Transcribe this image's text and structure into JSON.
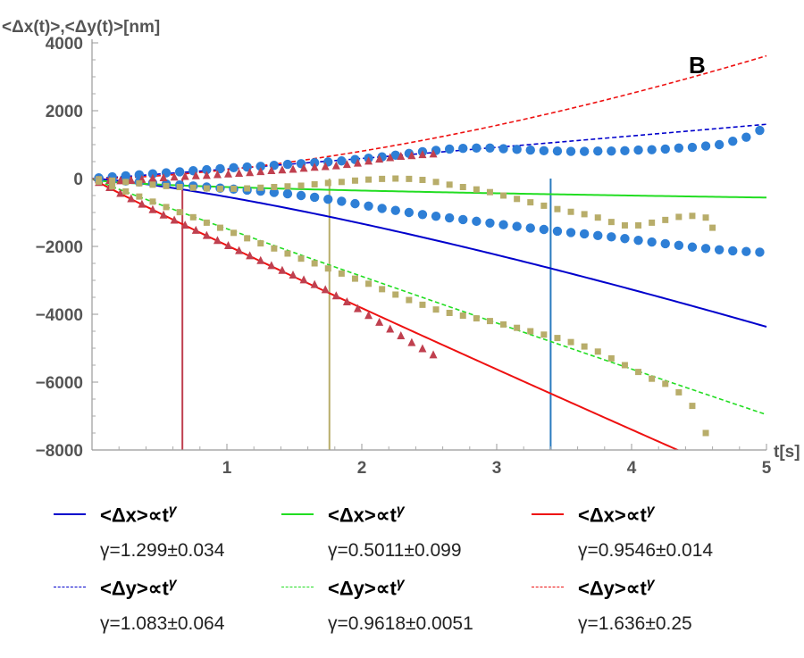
{
  "chart_data": {
    "type": "scatter",
    "panel_label": "B",
    "ylabel": "<Δx(t)>,<Δy(t)>[nm]",
    "xlabel": "t[s]",
    "xlim": [
      0,
      5
    ],
    "ylim": [
      -8000,
      4000
    ],
    "x_ticks": [
      "1",
      "2",
      "3",
      "4",
      "5"
    ],
    "y_ticks": [
      "4000",
      "2000",
      "0",
      "−2000",
      "−4000",
      "−6000",
      "−8000"
    ],
    "y_tick_values": [
      4000,
      2000,
      0,
      -2000,
      -4000,
      -6000,
      -8000
    ],
    "x_tick_values": [
      1,
      2,
      3,
      4,
      5
    ],
    "vertical_lines": [
      {
        "x": 0.67,
        "color": "#c0404f"
      },
      {
        "x": 1.76,
        "color": "#b8ad6a"
      },
      {
        "x": 3.4,
        "color": "#2a7bbf"
      }
    ],
    "fits": [
      {
        "name": "<Δx>∝t^γ blue",
        "color": "#0000cc",
        "dash": false,
        "coef": -540,
        "gamma": 1.299
      },
      {
        "name": "<Δx>∝t^γ green",
        "color": "#22dd22",
        "dash": false,
        "coef": -250,
        "gamma": 0.5011
      },
      {
        "name": "<Δx>∝t^γ red",
        "color": "#ee1111",
        "dash": false,
        "coef": -1970,
        "gamma": 0.9546
      },
      {
        "name": "<Δy>∝t^γ blue",
        "color": "#0000cc",
        "dash": true,
        "coef": 280,
        "gamma": 1.083
      },
      {
        "name": "<Δy>∝t^γ green",
        "color": "#22dd22",
        "dash": true,
        "coef": -1480,
        "gamma": 0.9618
      },
      {
        "name": "<Δy>∝t^γ red",
        "color": "#ee1111",
        "dash": true,
        "coef": 260,
        "gamma": 1.636
      }
    ],
    "series": [
      {
        "marker": "circle",
        "color": "#2e7fd6",
        "x": [
          0.05,
          0.15,
          0.25,
          0.35,
          0.45,
          0.55,
          0.65,
          0.75,
          0.85,
          0.95,
          1.05,
          1.15,
          1.25,
          1.35,
          1.45,
          1.55,
          1.65,
          1.75,
          1.85,
          1.95,
          2.05,
          2.15,
          2.25,
          2.35,
          2.45,
          2.55,
          2.65,
          2.75,
          2.85,
          2.95,
          3.05,
          3.15,
          3.25,
          3.35,
          3.45,
          3.55,
          3.65,
          3.75,
          3.85,
          3.95,
          4.05,
          4.15,
          4.25,
          4.35,
          4.45,
          4.55,
          4.65,
          4.75,
          4.85,
          4.95
        ],
        "y": [
          20,
          50,
          80,
          110,
          140,
          170,
          200,
          230,
          260,
          290,
          320,
          340,
          360,
          390,
          420,
          440,
          470,
          490,
          520,
          560,
          600,
          640,
          690,
          740,
          790,
          830,
          870,
          890,
          900,
          900,
          880,
          860,
          840,
          820,
          810,
          800,
          800,
          810,
          810,
          820,
          840,
          850,
          870,
          900,
          920,
          960,
          1000,
          1100,
          1220,
          1420
        ]
      },
      {
        "marker": "circle",
        "color": "#2e7fd6",
        "x": [
          0.05,
          0.15,
          0.25,
          0.35,
          0.45,
          0.55,
          0.65,
          0.75,
          0.85,
          0.95,
          1.05,
          1.15,
          1.25,
          1.35,
          1.45,
          1.55,
          1.65,
          1.75,
          1.85,
          1.95,
          2.05,
          2.15,
          2.25,
          2.35,
          2.45,
          2.55,
          2.65,
          2.75,
          2.85,
          2.95,
          3.05,
          3.15,
          3.25,
          3.35,
          3.45,
          3.55,
          3.65,
          3.75,
          3.85,
          3.95,
          4.05,
          4.15,
          4.25,
          4.35,
          4.45,
          4.55,
          4.65,
          4.75,
          4.85,
          4.95
        ],
        "y": [
          -20,
          -40,
          -70,
          -100,
          -130,
          -160,
          -190,
          -220,
          -250,
          -280,
          -310,
          -340,
          -370,
          -410,
          -450,
          -500,
          -550,
          -610,
          -670,
          -740,
          -810,
          -880,
          -940,
          -1000,
          -1060,
          -1110,
          -1160,
          -1210,
          -1260,
          -1310,
          -1360,
          -1410,
          -1460,
          -1500,
          -1550,
          -1590,
          -1630,
          -1680,
          -1720,
          -1770,
          -1820,
          -1870,
          -1920,
          -1970,
          -2020,
          -2060,
          -2100,
          -2130,
          -2150,
          -2170
        ]
      },
      {
        "marker": "triangle",
        "color": "#c0404f",
        "x": [
          0.05,
          0.13,
          0.21,
          0.29,
          0.37,
          0.45,
          0.53,
          0.61,
          0.69,
          0.77,
          0.85,
          0.93,
          1.01,
          1.09,
          1.17,
          1.25,
          1.33,
          1.41,
          1.49,
          1.57,
          1.65,
          1.73,
          1.81,
          1.89,
          1.97,
          2.05,
          2.13,
          2.21,
          2.29,
          2.37,
          2.45,
          2.53
        ],
        "y": [
          -100,
          -250,
          -420,
          -580,
          -740,
          -900,
          -1060,
          -1210,
          -1360,
          -1510,
          -1660,
          -1810,
          -1960,
          -2110,
          -2260,
          -2400,
          -2550,
          -2690,
          -2830,
          -2970,
          -3110,
          -3260,
          -3440,
          -3620,
          -3820,
          -4020,
          -4220,
          -4420,
          -4620,
          -4820,
          -5000,
          -5180
        ]
      },
      {
        "marker": "triangle",
        "color": "#c0404f",
        "x": [
          0.05,
          0.13,
          0.21,
          0.29,
          0.37,
          0.45,
          0.53,
          0.61,
          0.69,
          0.77,
          0.85,
          0.93,
          1.01,
          1.09,
          1.17,
          1.25,
          1.33,
          1.41,
          1.49,
          1.57,
          1.65,
          1.73,
          1.81,
          1.89,
          1.97,
          2.05,
          2.13,
          2.21,
          2.29,
          2.37,
          2.45,
          2.53
        ],
        "y": [
          -20,
          -40,
          -50,
          -40,
          -10,
          20,
          40,
          60,
          80,
          100,
          110,
          130,
          150,
          170,
          190,
          220,
          250,
          270,
          290,
          320,
          350,
          370,
          390,
          430,
          470,
          530,
          590,
          630,
          670,
          690,
          720,
          740
        ]
      },
      {
        "marker": "square",
        "color": "#b8ad6a",
        "x": [
          0.05,
          0.15,
          0.25,
          0.35,
          0.45,
          0.55,
          0.65,
          0.75,
          0.85,
          0.95,
          1.05,
          1.15,
          1.25,
          1.35,
          1.45,
          1.55,
          1.65,
          1.75,
          1.85,
          1.95,
          2.05,
          2.15,
          2.25,
          2.35,
          2.45,
          2.55,
          2.65,
          2.75,
          2.85,
          2.95,
          3.05,
          3.15,
          3.25,
          3.35,
          3.45,
          3.55,
          3.65,
          3.75,
          3.85,
          3.95,
          4.05,
          4.15,
          4.25,
          4.35,
          4.45,
          4.55,
          4.6
        ],
        "y": [
          -20,
          -60,
          -100,
          -140,
          -180,
          -220,
          -250,
          -270,
          -290,
          -300,
          -300,
          -290,
          -270,
          -250,
          -230,
          -210,
          -170,
          -130,
          -100,
          -60,
          -30,
          -10,
          0,
          -10,
          -40,
          -100,
          -180,
          -250,
          -320,
          -400,
          -500,
          -600,
          -700,
          -800,
          -900,
          -980,
          -1050,
          -1150,
          -1280,
          -1380,
          -1380,
          -1300,
          -1220,
          -1130,
          -1100,
          -1150,
          -1450
        ]
      },
      {
        "marker": "square",
        "color": "#b8ad6a",
        "x": [
          0.05,
          0.15,
          0.25,
          0.35,
          0.45,
          0.55,
          0.65,
          0.75,
          0.85,
          0.95,
          1.05,
          1.15,
          1.25,
          1.35,
          1.45,
          1.55,
          1.65,
          1.75,
          1.85,
          1.95,
          2.05,
          2.15,
          2.25,
          2.35,
          2.45,
          2.55,
          2.65,
          2.75,
          2.85,
          2.95,
          3.05,
          3.15,
          3.25,
          3.35,
          3.45,
          3.55,
          3.65,
          3.75,
          3.85,
          3.95,
          4.05,
          4.15,
          4.25,
          4.35,
          4.45,
          4.55
        ],
        "y": [
          -90,
          -230,
          -380,
          -530,
          -680,
          -840,
          -990,
          -1140,
          -1300,
          -1450,
          -1600,
          -1760,
          -1910,
          -2060,
          -2210,
          -2360,
          -2500,
          -2650,
          -2800,
          -2950,
          -3100,
          -3260,
          -3420,
          -3580,
          -3720,
          -3860,
          -3960,
          -4040,
          -4120,
          -4200,
          -4300,
          -4400,
          -4500,
          -4600,
          -4700,
          -4820,
          -4950,
          -5100,
          -5300,
          -5500,
          -5700,
          -5900,
          -6050,
          -6300,
          -6700,
          -7500
        ]
      }
    ]
  },
  "legend": {
    "items": [
      {
        "expr": "<Δx>∝t",
        "exp": "γ",
        "fit": "γ=1.299±0.034",
        "color": "#0000cc",
        "dash": false
      },
      {
        "expr": "<Δx>∝t",
        "exp": "γ",
        "fit": "γ=0.5011±0.099",
        "color": "#22dd22",
        "dash": false
      },
      {
        "expr": "<Δx>∝t",
        "exp": "γ",
        "fit": "γ=0.9546±0.014",
        "color": "#ee1111",
        "dash": false
      },
      {
        "expr": "<Δy>∝t",
        "exp": "γ",
        "fit": "γ=1.083±0.064",
        "color": "#0000cc",
        "dash": true
      },
      {
        "expr": "<Δy>∝t",
        "exp": "γ",
        "fit": "γ=0.9618±0.0051",
        "color": "#22dd22",
        "dash": true
      },
      {
        "expr": "<Δy>∝t",
        "exp": "γ",
        "fit": "γ=1.636±0.25",
        "color": "#ee1111",
        "dash": true
      }
    ]
  }
}
